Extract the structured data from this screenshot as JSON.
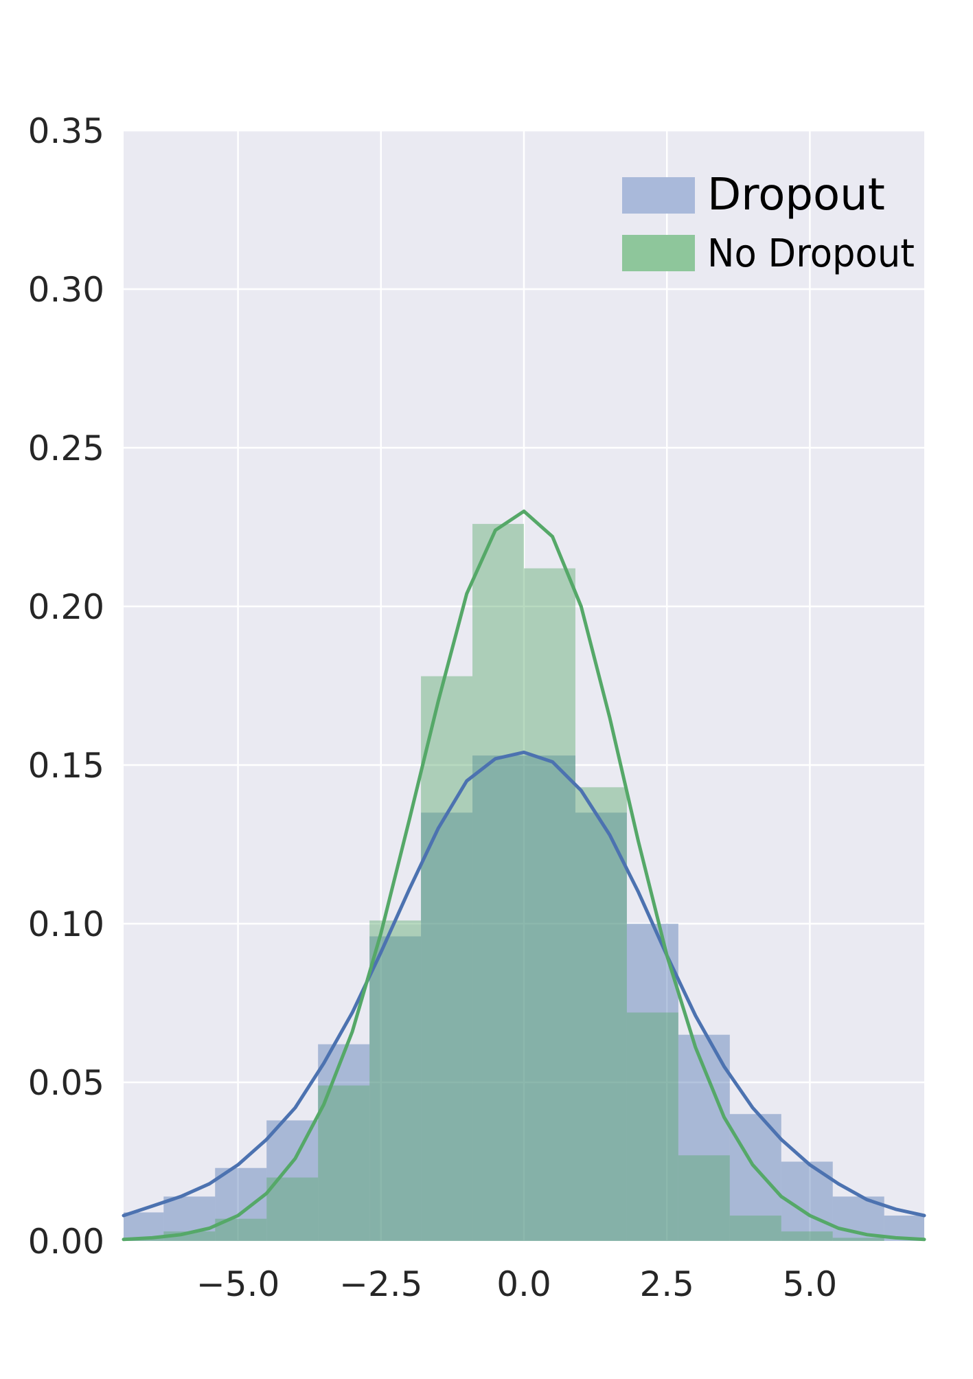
{
  "chart_data": {
    "type": "area",
    "title": "",
    "xlabel": "",
    "ylabel": "",
    "xlim": [
      -7.0,
      7.0
    ],
    "ylim": [
      0,
      0.35
    ],
    "xticks": [
      -5.0,
      -2.5,
      0.0,
      2.5,
      5.0
    ],
    "xtick_labels": [
      "−5.0",
      "−2.5",
      "0.0",
      "2.5",
      "5.0"
    ],
    "yticks": [
      0,
      0.05,
      0.1,
      0.15,
      0.2,
      0.25,
      0.3,
      0.35
    ],
    "ytick_labels": [
      "0.00",
      "0.05",
      "0.10",
      "0.15",
      "0.20",
      "0.25",
      "0.30",
      "0.35"
    ],
    "grid": true,
    "legend_position": "top-right",
    "series": [
      {
        "name": "Dropout",
        "color": "#4c72b0",
        "hist_color": "#a9b9da",
        "hist_edges": [
          -7.0,
          -6.3,
          -5.4,
          -4.5,
          -3.6,
          -2.7,
          -1.8,
          -0.9,
          0.0,
          0.9,
          1.8,
          2.7,
          3.6,
          4.5,
          5.4,
          6.3,
          7.0
        ],
        "hist_values": [
          0.009,
          0.014,
          0.023,
          0.038,
          0.062,
          0.096,
          0.135,
          0.153,
          0.153,
          0.135,
          0.1,
          0.065,
          0.04,
          0.025,
          0.014,
          0.008
        ],
        "kde_x": [
          -7,
          -6.5,
          -6,
          -5.5,
          -5,
          -4.5,
          -4,
          -3.5,
          -3,
          -2.5,
          -2,
          -1.5,
          -1,
          -0.5,
          0,
          0.5,
          1,
          1.5,
          2,
          2.5,
          3,
          3.5,
          4,
          4.5,
          5,
          5.5,
          6,
          6.5,
          7
        ],
        "kde_y": [
          0.008,
          0.011,
          0.014,
          0.018,
          0.024,
          0.032,
          0.042,
          0.056,
          0.072,
          0.091,
          0.111,
          0.13,
          0.145,
          0.152,
          0.154,
          0.151,
          0.142,
          0.128,
          0.11,
          0.09,
          0.071,
          0.055,
          0.042,
          0.032,
          0.024,
          0.018,
          0.013,
          0.01,
          0.008
        ]
      },
      {
        "name": "No Dropout",
        "color": "#55a868",
        "hist_color": "#8ec69b",
        "hist_edges": [
          -7.0,
          -6.3,
          -5.4,
          -4.5,
          -3.6,
          -2.7,
          -1.8,
          -0.9,
          0.0,
          0.9,
          1.8,
          2.7,
          3.6,
          4.5,
          5.4,
          6.3,
          7.0
        ],
        "hist_values": [
          0.001,
          0.003,
          0.007,
          0.02,
          0.049,
          0.101,
          0.178,
          0.226,
          0.212,
          0.143,
          0.072,
          0.027,
          0.008,
          0.003,
          0.001,
          0.0
        ],
        "kde_x": [
          -7,
          -6.5,
          -6,
          -5.5,
          -5,
          -4.5,
          -4,
          -3.5,
          -3,
          -2.5,
          -2,
          -1.5,
          -1,
          -0.5,
          0,
          0.5,
          1,
          1.5,
          2,
          2.5,
          3,
          3.5,
          4,
          4.5,
          5,
          5.5,
          6,
          6.5,
          7
        ],
        "kde_y": [
          0.0005,
          0.001,
          0.002,
          0.004,
          0.008,
          0.015,
          0.026,
          0.043,
          0.066,
          0.097,
          0.133,
          0.17,
          0.204,
          0.224,
          0.23,
          0.222,
          0.2,
          0.165,
          0.126,
          0.09,
          0.061,
          0.039,
          0.024,
          0.014,
          0.008,
          0.004,
          0.002,
          0.001,
          0.0005
        ]
      }
    ],
    "colors": {
      "plot_background": "#eaeaf2",
      "grid": "#ffffff",
      "overlap": "#8ab1a6"
    }
  }
}
